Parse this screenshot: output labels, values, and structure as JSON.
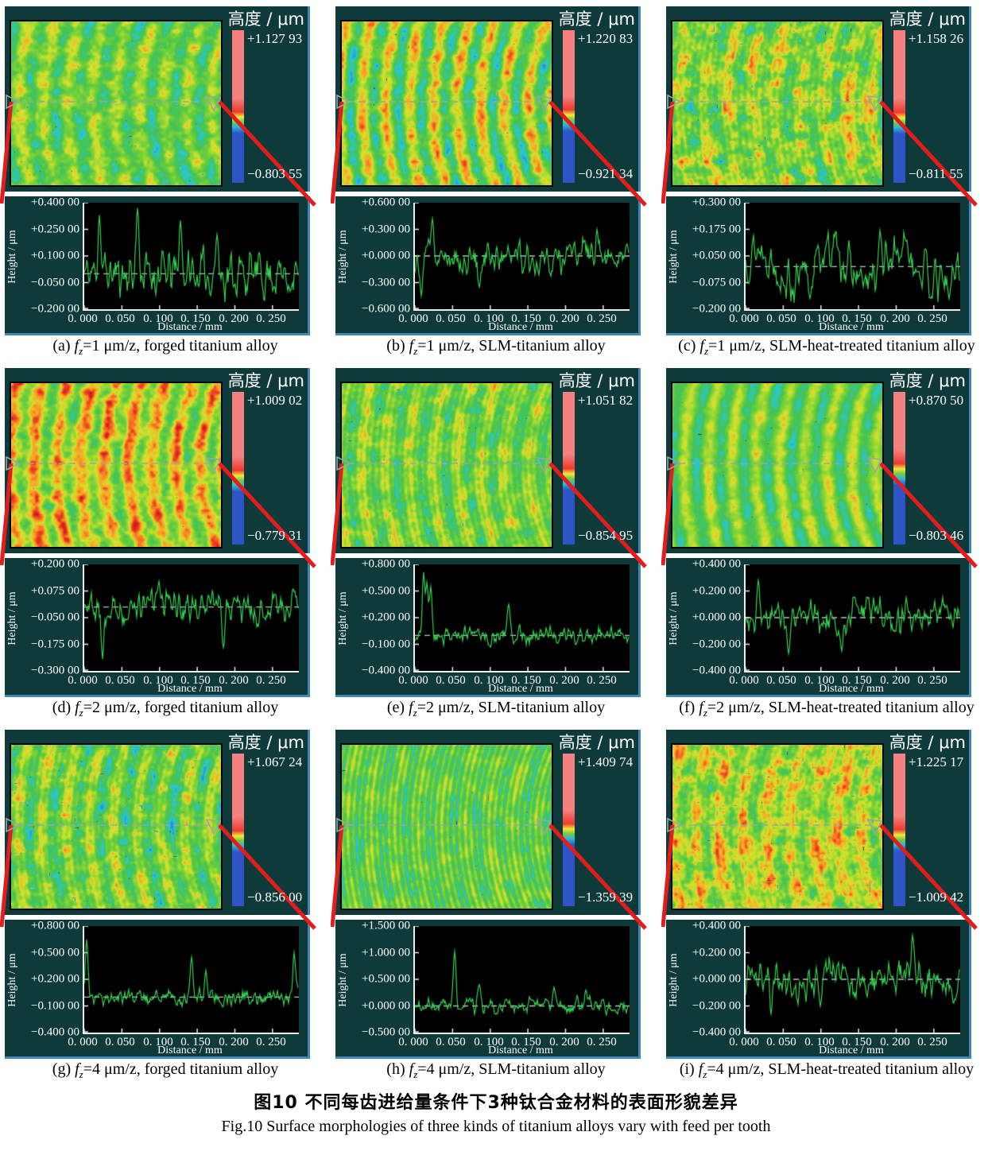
{
  "figure": {
    "caption_zh": "图10  不同每齿进给量条件下3种钛合金材料的表面形貌差异",
    "caption_en": "Fig.10   Surface morphologies of three kinds of titanium alloys vary with feed per tooth"
  },
  "chart_data": {
    "type": "heatmap+line-grid",
    "description": "3x3 grid: surface height maps (with colorbar, units μm) and cross-section roughness profiles vs distance",
    "shared": {
      "colorbar_title": "高度 / μm",
      "profile_xlabel": "Distance / mm",
      "profile_ylabel": "Height / μm",
      "profile_xticks": [
        "0. 000",
        "0. 050",
        "0. 100",
        "0. 150",
        "0. 200",
        "0. 250"
      ],
      "x_range_mm": [
        0,
        0.285
      ],
      "baseline_value": 0
    },
    "panels": [
      {
        "id": "a",
        "cap_label": "(a) ",
        "cap_var": "f",
        "cap_sub": "z",
        "cap_rest": "=1 μm/z, forged titanium alloy",
        "colorbar_max": "+1.127 93",
        "colorbar_min": "−0.803 55",
        "yticks": [
          "+0.400 00",
          "+0.250 00",
          "+0.100 00",
          "−0.050 00",
          "−0.200 00"
        ],
        "ylim": [
          0.4,
          -0.2
        ],
        "texture": {
          "warm": 0.02,
          "band": 0.11,
          "noise": 0.15,
          "stripe": 0,
          "speck": 0.02,
          "seed": 101
        },
        "profile": {
          "noise": 0.1,
          "wave": 0,
          "spikes": [
            [
              0.07,
              0.33
            ],
            [
              0.25,
              0.37
            ],
            [
              0.45,
              0.3
            ],
            [
              0.62,
              0.22
            ]
          ],
          "seed": 11
        }
      },
      {
        "id": "b",
        "cap_label": "(b) ",
        "cap_var": "f",
        "cap_sub": "z",
        "cap_rest": "=1 μm/z, SLM-titanium alloy",
        "colorbar_max": "+1.220 83",
        "colorbar_min": "−0.921 34",
        "yticks": [
          "+0.600 00",
          "+0.300 00",
          "+0.000 00",
          "−0.300 00",
          "−0.600 00"
        ],
        "ylim": [
          0.6,
          -0.6
        ],
        "texture": {
          "warm": 0.06,
          "band": 0.2,
          "noise": 0.14,
          "stripe": 0,
          "speck": 0.01,
          "seed": 102
        },
        "profile": {
          "noise": 0.14,
          "wave": 0.06,
          "spikes": [
            [
              0.03,
              -0.45
            ],
            [
              0.08,
              0.42
            ],
            [
              0.3,
              -0.35
            ],
            [
              0.85,
              0.3
            ]
          ],
          "seed": 12
        }
      },
      {
        "id": "c",
        "cap_label": "(c) ",
        "cap_var": "f",
        "cap_sub": "z",
        "cap_rest": "=1 μm/z, SLM-heat-treated titanium alloy",
        "colorbar_max": "+1.158 26",
        "colorbar_min": "−0.811 55",
        "yticks": [
          "+0.300 00",
          "+0.175 00",
          "+0.050 00",
          "−0.075 00",
          "−0.200 00"
        ],
        "ylim": [
          0.3,
          -0.2
        ],
        "texture": {
          "warm": 0.07,
          "band": 0.09,
          "noise": 0.19,
          "stripe": 0.04,
          "speck": 0.03,
          "seed": 103
        },
        "profile": {
          "noise": 0.07,
          "wave": 0.08,
          "spikes": [
            [
              0.63,
              0.17
            ],
            [
              0.3,
              -0.15
            ],
            [
              0.95,
              -0.15
            ]
          ],
          "seed": 13
        }
      },
      {
        "id": "d",
        "cap_label": "(d) ",
        "cap_var": "f",
        "cap_sub": "z",
        "cap_rest": "=2 μm/z, forged titanium alloy",
        "colorbar_max": "+1.009 02",
        "colorbar_min": "−0.779 31",
        "yticks": [
          "+0.200 00",
          "+0.075 00",
          "−0.050 00",
          "−0.175 00",
          "−0.300 00"
        ],
        "ylim": [
          0.2,
          -0.3
        ],
        "texture": {
          "warm": 0.17,
          "band": 0.16,
          "noise": 0.15,
          "stripe": 0,
          "speck": 0.01,
          "seed": 104
        },
        "profile": {
          "noise": 0.055,
          "wave": 0.02,
          "spikes": [
            [
              0.085,
              -0.245
            ],
            [
              0.35,
              0.12
            ],
            [
              0.65,
              -0.19
            ]
          ],
          "seed": 14
        }
      },
      {
        "id": "e",
        "cap_label": "(e) ",
        "cap_var": "f",
        "cap_sub": "z",
        "cap_rest": "=2 μm/z, SLM-titanium alloy",
        "colorbar_max": "+1.051 82",
        "colorbar_min": "−0.854 95",
        "yticks": [
          "+0.800 00",
          "+0.500 00",
          "+0.200 00",
          "−0.100 00",
          "−0.400 00"
        ],
        "ylim": [
          0.8,
          -0.4
        ],
        "texture": {
          "warm": 0.03,
          "band": 0.1,
          "noise": 0.13,
          "stripe": 0.05,
          "speck": 0.02,
          "seed": 105
        },
        "profile": {
          "noise": 0.075,
          "wave": 0,
          "spikes": [
            [
              0.04,
              0.72
            ],
            [
              0.055,
              0.6
            ],
            [
              0.075,
              0.55
            ],
            [
              0.44,
              0.35
            ]
          ],
          "seed": 15
        }
      },
      {
        "id": "f",
        "cap_label": "(f) ",
        "cap_var": "f",
        "cap_sub": "z",
        "cap_rest": "=2 μm/z, SLM-heat-treated titanium alloy",
        "colorbar_max": "+0.870 50",
        "colorbar_min": "−0.803 46",
        "yticks": [
          "+0.400 00",
          "+0.200 00",
          "+0.000 00",
          "−0.200 00",
          "−0.400 00"
        ],
        "ylim": [
          0.4,
          -0.4
        ],
        "texture": {
          "warm": 0.01,
          "band": 0.15,
          "noise": 0.09,
          "stripe": 0,
          "speck": 0.01,
          "seed": 106
        },
        "profile": {
          "noise": 0.085,
          "wave": 0.03,
          "spikes": [
            [
              0.06,
              0.28
            ],
            [
              0.2,
              -0.27
            ],
            [
              0.45,
              -0.25
            ],
            [
              0.75,
              0.15
            ]
          ],
          "seed": 16
        }
      },
      {
        "id": "g",
        "cap_label": "(g) ",
        "cap_var": "f",
        "cap_sub": "z",
        "cap_rest": "=4 μm/z, forged titanium alloy",
        "colorbar_max": "+1.067 24",
        "colorbar_min": "−0.856 00",
        "yticks": [
          "+0.800 00",
          "+0.500 00",
          "+0.200 00",
          "−0.100 00",
          "−0.400 00"
        ],
        "ylim": [
          0.8,
          -0.4
        ],
        "texture": {
          "warm": 0.01,
          "band": 0.12,
          "noise": 0.15,
          "stripe": 0.04,
          "speck": 0.03,
          "seed": 107
        },
        "profile": {
          "noise": 0.075,
          "wave": 0,
          "spikes": [
            [
              0.012,
              0.65
            ],
            [
              0.5,
              0.45
            ],
            [
              0.57,
              0.3
            ],
            [
              0.98,
              0.5
            ]
          ],
          "seed": 17
        }
      },
      {
        "id": "h",
        "cap_label": "(h) ",
        "cap_var": "f",
        "cap_sub": "z",
        "cap_rest": "=4 μm/z, SLM-titanium alloy",
        "colorbar_max": "+1.409 74",
        "colorbar_min": "−1.359 39",
        "yticks": [
          "+1.500 00",
          "+1.000 00",
          "+0.500 00",
          "+0.000 00",
          "−0.500 00"
        ],
        "ylim": [
          1.5,
          -0.5
        ],
        "texture": {
          "warm": -0.01,
          "band": 0.06,
          "noise": 0.09,
          "stripe": 0.09,
          "speck": 0.01,
          "seed": 108
        },
        "profile": {
          "noise": 0.11,
          "wave": 0,
          "spikes": [
            [
              0.185,
              1.02
            ],
            [
              0.3,
              0.4
            ],
            [
              0.65,
              0.35
            ],
            [
              0.8,
              0.3
            ]
          ],
          "seed": 18
        }
      },
      {
        "id": "i",
        "cap_label": "(i) ",
        "cap_var": "f",
        "cap_sub": "z",
        "cap_rest": "=4 μm/z, SLM-heat-treated titanium alloy",
        "colorbar_max": "+1.225 17",
        "colorbar_min": "−1.009 42",
        "yticks": [
          "+0.400 00",
          "+0.200 00",
          "+0.000 00",
          "−0.200 00",
          "−0.400 00"
        ],
        "ylim": [
          0.4,
          -0.4
        ],
        "texture": {
          "warm": 0.13,
          "band": 0.09,
          "noise": 0.18,
          "stripe": 0.03,
          "speck": 0.04,
          "seed": 109
        },
        "profile": {
          "noise": 0.09,
          "wave": 0.05,
          "spikes": [
            [
              0.78,
              0.33
            ],
            [
              0.12,
              -0.26
            ],
            [
              0.35,
              -0.2
            ]
          ],
          "seed": 19
        }
      }
    ]
  }
}
